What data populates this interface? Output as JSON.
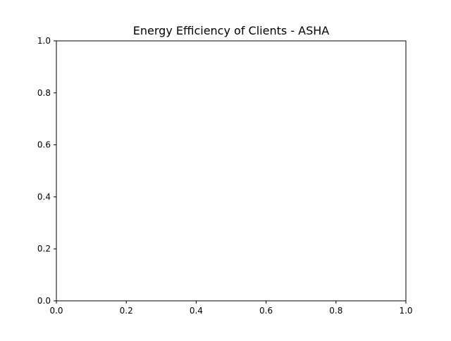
{
  "chart_data": {
    "type": "line",
    "title": "Energy Efficiency of Clients - ASHA",
    "xlabel": "",
    "ylabel": "",
    "xlim": [
      0.0,
      1.0
    ],
    "ylim": [
      0.0,
      1.0
    ],
    "x_ticks": [
      "0.0",
      "0.2",
      "0.4",
      "0.6",
      "0.8",
      "1.0"
    ],
    "y_ticks": [
      "0.0",
      "0.2",
      "0.4",
      "0.6",
      "0.8",
      "1.0"
    ],
    "series": [],
    "grid": false,
    "legend": "none"
  }
}
